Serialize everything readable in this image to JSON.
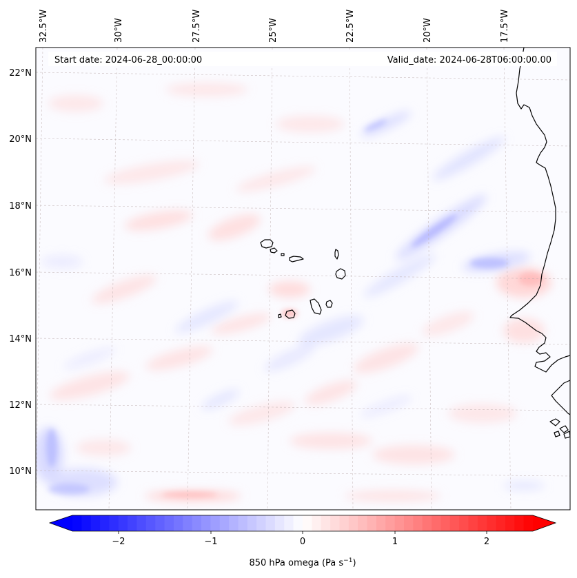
{
  "title_bar": {
    "start_date": "Start date: 2024-06-28_00:00:00",
    "valid_date": "Valid_date: 2024-06-28T06:00:00.00"
  },
  "axes": {
    "longitude_labels": [
      "32.5°W",
      "30°W",
      "27.5°W",
      "25°W",
      "22.5°W",
      "20°W",
      "17.5°W"
    ],
    "latitude_labels": [
      "22°N",
      "20°N",
      "18°N",
      "16°N",
      "14°N",
      "12°N",
      "10°N"
    ]
  },
  "colorbar": {
    "label": "850 hPa omega (Pa s",
    "label_sup": "−1",
    "label_end": ")",
    "tick_labels": [
      "−2",
      "−1",
      "0",
      "1",
      "2"
    ],
    "min": -2.5,
    "max": 2.5,
    "low_color": "#0000ff",
    "high_color": "#ff0000"
  },
  "colors": {
    "coastline": "#000000",
    "gridline": "#bfb0b0",
    "ocean_base": "#fbfbff"
  }
}
